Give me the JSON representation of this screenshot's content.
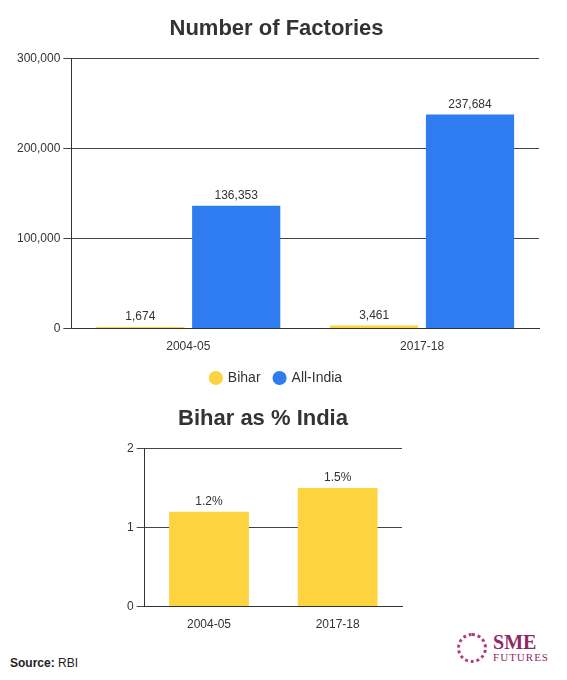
{
  "chart_data": [
    {
      "type": "bar",
      "title": "Number of Factories",
      "categories": [
        "2004-05",
        "2017-18"
      ],
      "series": [
        {
          "name": "Bihar",
          "color": "#fdd33f",
          "values": [
            1674,
            3461
          ],
          "value_labels": [
            "1,674",
            "3,461"
          ]
        },
        {
          "name": "All-India",
          "color": "#2f7cf0",
          "values": [
            136353,
            237684
          ],
          "value_labels": [
            "136,353",
            "237,684"
          ]
        }
      ],
      "ylim": [
        0,
        300000
      ],
      "yticks": [
        0,
        {
          "value": 100000,
          "label": "100,000"
        },
        {
          "value": 200000,
          "label": "200,000"
        },
        {
          "value": 300000,
          "label": "300,000"
        }
      ],
      "grid": true,
      "legend": "bottom",
      "data_labels": true
    },
    {
      "type": "bar",
      "title": "Bihar as % India",
      "categories": [
        "2004-05",
        "2017-18"
      ],
      "values": [
        1.2,
        1.5
      ],
      "value_labels": [
        "1.2%",
        "1.5%"
      ],
      "color": "#fdd33f",
      "ylim": [
        0,
        2
      ],
      "yticks": [
        0,
        1,
        2
      ],
      "grid": true,
      "data_labels": true
    }
  ],
  "source": "Source: RBI",
  "logo": [
    "SME",
    "FUTURES"
  ]
}
